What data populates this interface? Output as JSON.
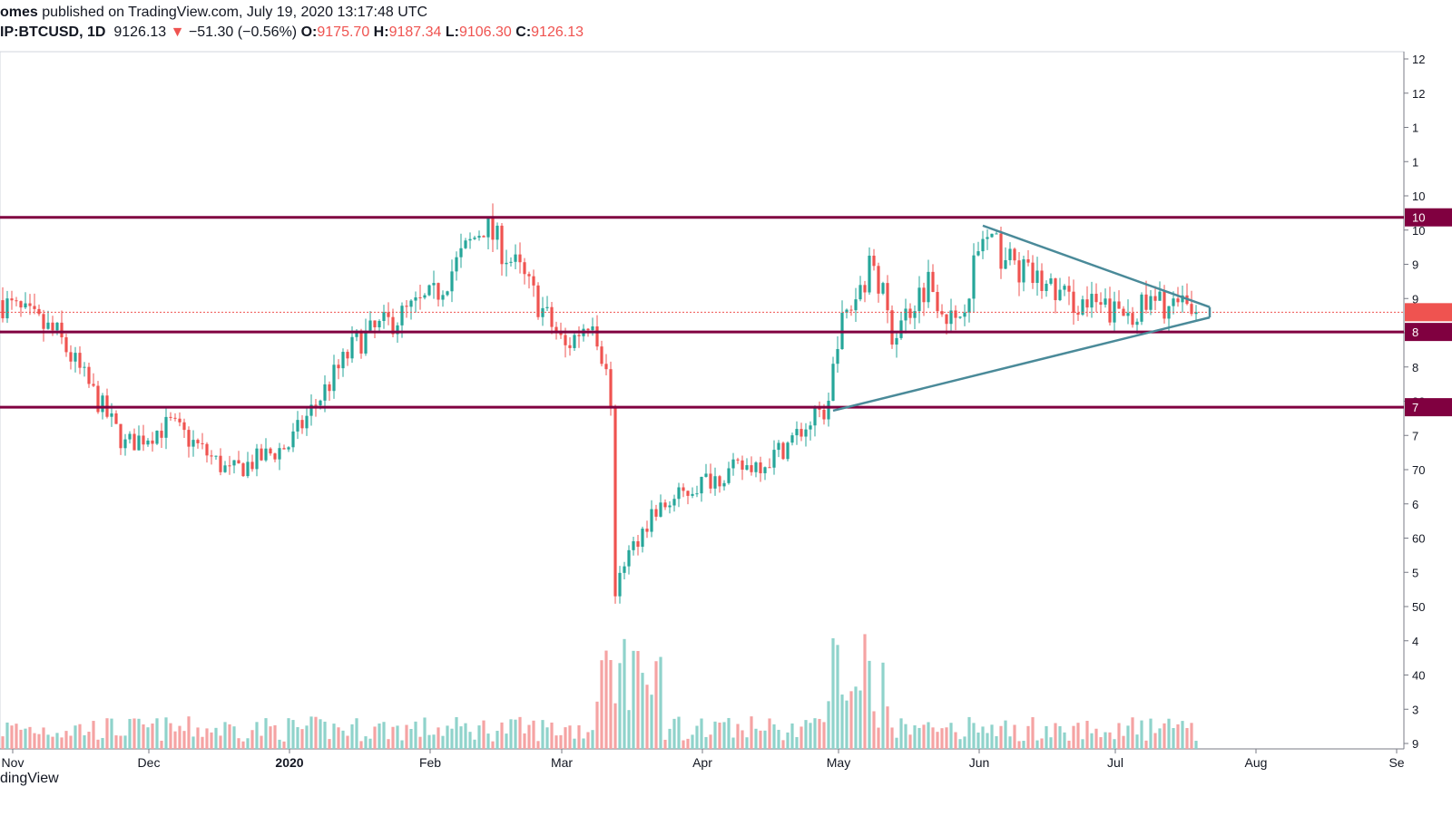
{
  "header": {
    "author": "omes",
    "published_text": "published on TradingView.com, July 19, 2020 13:17:48 UTC",
    "symbol": "IP:BTCUSD, 1D",
    "last": "9126.13",
    "change_arrow": "▼",
    "change": "−51.30 (−0.56%)",
    "o_label": "O:",
    "o_value": "9175.70",
    "h_label": "H:",
    "h_value": "9187.34",
    "l_label": "L:",
    "l_value": "9106.30",
    "c_label": "C:",
    "c_value": "9126.13"
  },
  "footer": {
    "brand": "dingView"
  },
  "colors": {
    "up": "#26a69a",
    "down": "#ef5350",
    "up_volume": "#8fd3cb",
    "down_volume": "#f5a3a3",
    "level_line": "#800040",
    "triangle": "#4a8a99",
    "current_price": "#ef5350"
  },
  "chart_data": {
    "type": "candlestick",
    "symbol": "BTCUSD",
    "interval": "1D",
    "x_ticks": [
      "Nov",
      "Dec",
      "2020",
      "Feb",
      "Mar",
      "Apr",
      "May",
      "Jun",
      "Jul",
      "Aug",
      "Se"
    ],
    "y_axis_labels": [
      "12",
      "12",
      "1",
      "1",
      "10",
      "10",
      "9",
      "9",
      "10",
      "8",
      "80",
      "7",
      "70",
      "6",
      "60",
      "5",
      "50",
      "4",
      "40",
      "3",
      "9"
    ],
    "ylim": [
      2800,
      12900
    ],
    "horizontal_levels": [
      {
        "value": 10500,
        "label": "10"
      },
      {
        "value": 8840,
        "label": "8"
      },
      {
        "value": 7750,
        "label": "7"
      }
    ],
    "current_price": 9126,
    "triangle_pattern": {
      "upper": [
        [
          "2020-06-01",
          10380
        ],
        [
          "2020-07-21",
          9200
        ]
      ],
      "lower": [
        [
          "2020-04-29",
          7700
        ],
        [
          "2020-07-21",
          9050
        ]
      ]
    },
    "monthly_path": [
      [
        "2019-10-28",
        9300
      ],
      [
        "2019-11-10",
        8800
      ],
      [
        "2019-11-25",
        7200
      ],
      [
        "2019-12-05",
        7500
      ],
      [
        "2019-12-18",
        6800
      ],
      [
        "2019-12-31",
        7200
      ],
      [
        "2020-01-15",
        8700
      ],
      [
        "2020-02-01",
        9350
      ],
      [
        "2020-02-12",
        10400
      ],
      [
        "2020-02-20",
        9700
      ],
      [
        "2020-03-01",
        8600
      ],
      [
        "2020-03-07",
        9100
      ],
      [
        "2020-03-11",
        7900
      ],
      [
        "2020-03-12",
        4900
      ],
      [
        "2020-03-13",
        5400
      ],
      [
        "2020-03-20",
        6200
      ],
      [
        "2020-04-01",
        6700
      ],
      [
        "2020-04-15",
        7000
      ],
      [
        "2020-04-28",
        7750
      ],
      [
        "2020-04-30",
        8800
      ],
      [
        "2020-05-08",
        9900
      ],
      [
        "2020-05-12",
        8800
      ],
      [
        "2020-05-20",
        9600
      ],
      [
        "2020-05-26",
        8900
      ],
      [
        "2020-06-01",
        10200
      ],
      [
        "2020-06-10",
        9700
      ],
      [
        "2020-06-20",
        9300
      ],
      [
        "2020-07-01",
        9100
      ],
      [
        "2020-07-10",
        9250
      ],
      [
        "2020-07-18",
        9126
      ]
    ]
  }
}
